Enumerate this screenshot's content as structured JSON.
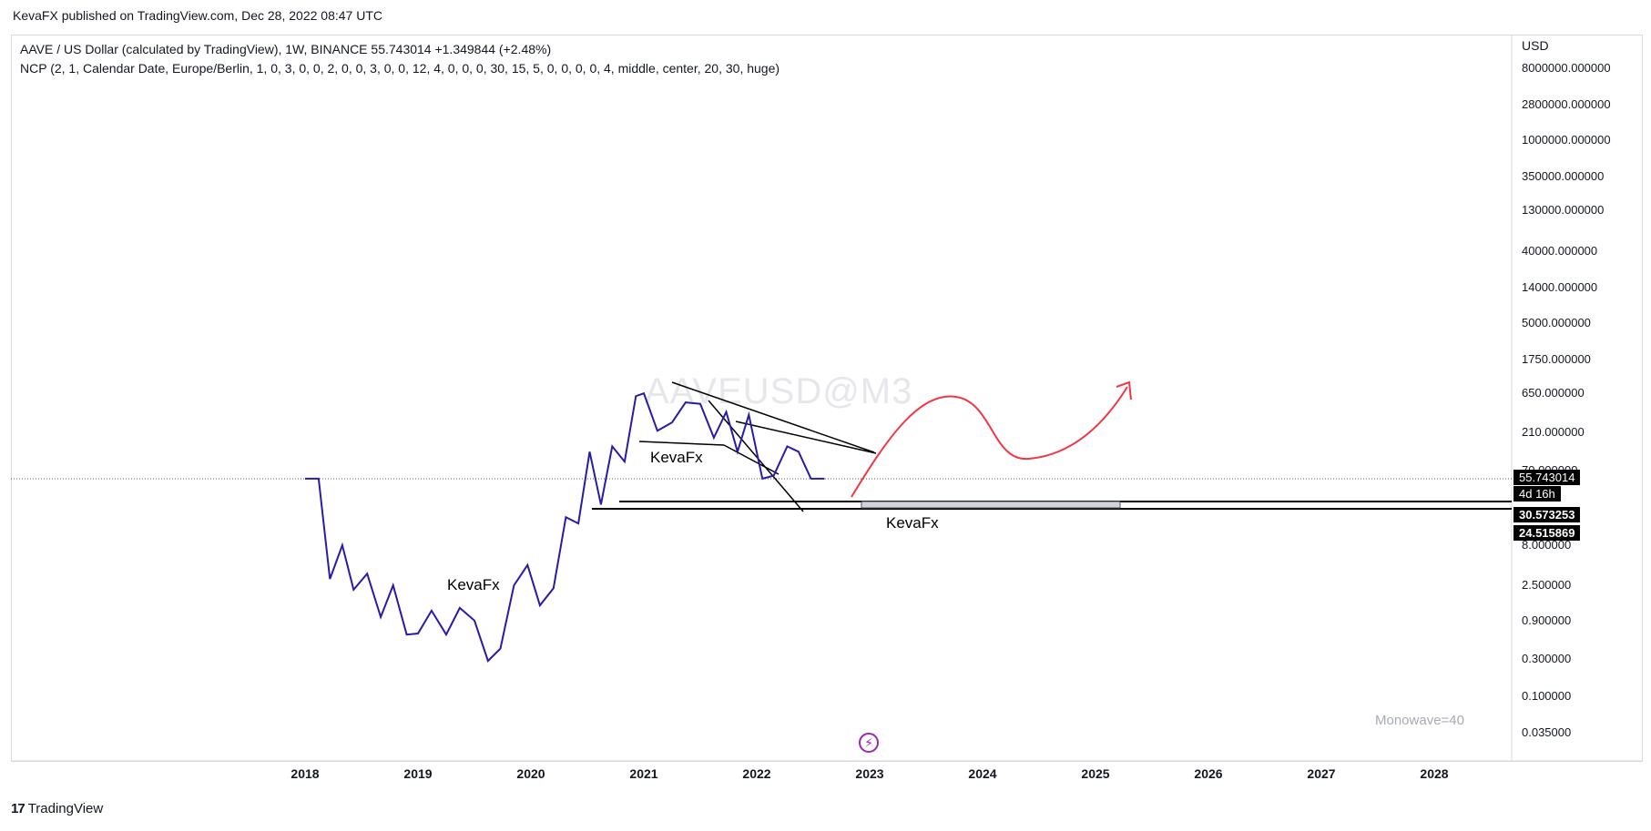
{
  "publisher": "KevaFX published on TradingView.com, Dec 28, 2022 08:47 UTC",
  "legend": {
    "line1": "AAVE / US Dollar (calculated by TradingView), 1W, BINANCE  55.743014  +1.349844 (+2.48%)",
    "line2": "NCP (2, 1, Calendar Date, Europe/Berlin, 1, 0, 3, 0, 0, 2, 0, 0, 3, 0, 0, 12, 4, 0, 0, 0, 30, 15, 5, 0, 0, 0, 0, 4, middle, center, 20, 30, huge)"
  },
  "watermark": "AAVEUSD@M3",
  "monowave_label": "Monowave=40",
  "annotations": [
    "KevaFx",
    "KevaFx",
    "KevaFx"
  ],
  "footer": {
    "brand": "TradingView",
    "logo": "17"
  },
  "colors": {
    "series": "#2a1aa8",
    "projection": "#f23645",
    "lines": "#000000",
    "zone": "#d1d4dc"
  },
  "icons": {
    "alert": "lightning-icon"
  },
  "chart_data": {
    "type": "line",
    "scale": "log",
    "yaxis_title": "USD",
    "y_ticks": [
      "8000000.000000",
      "2800000.000000",
      "1000000.000000",
      "350000.000000",
      "130000.000000",
      "40000.000000",
      "14000.000000",
      "5000.000000",
      "1750.000000",
      "650.000000",
      "210.000000",
      "70.000000",
      "8.000000",
      "2.500000",
      "0.900000",
      "0.300000",
      "0.100000",
      "0.035000"
    ],
    "x_ticks": [
      "2018",
      "2019",
      "2020",
      "2021",
      "2022",
      "2023",
      "2024",
      "2025",
      "2026",
      "2027",
      "2028"
    ],
    "price_tags": {
      "last": "55.743014",
      "countdown": "4d 16h",
      "level_upper": "30.573253",
      "level_lower": "24.515869"
    },
    "series": [
      {
        "values_x_year": [
          2018.0,
          2018.12,
          2018.22,
          2018.33,
          2018.43,
          2018.55,
          2018.67,
          2018.78,
          2018.9,
          2019.0,
          2019.12,
          2019.25,
          2019.37,
          2019.5,
          2019.62,
          2019.73,
          2019.85,
          2019.97,
          2020.08,
          2020.2,
          2020.31,
          2020.42,
          2020.52,
          2020.62,
          2020.72,
          2020.83,
          2020.93,
          2021.0,
          2021.12,
          2021.25,
          2021.37,
          2021.5,
          2021.62,
          2021.73,
          2021.83,
          2021.93,
          2022.05,
          2022.15,
          2022.27,
          2022.37,
          2022.48,
          2022.6
        ],
        "values_price": [
          55,
          55,
          3.0,
          8.0,
          2.2,
          3.5,
          1.0,
          2.5,
          0.6,
          0.62,
          1.2,
          0.6,
          1.3,
          0.9,
          0.28,
          0.4,
          2.5,
          4.5,
          1.4,
          2.3,
          18,
          15,
          120,
          26,
          140,
          90,
          600,
          650,
          220,
          280,
          500,
          480,
          180,
          380,
          120,
          350,
          55,
          60,
          140,
          120,
          55,
          55
        ]
      }
    ]
  }
}
